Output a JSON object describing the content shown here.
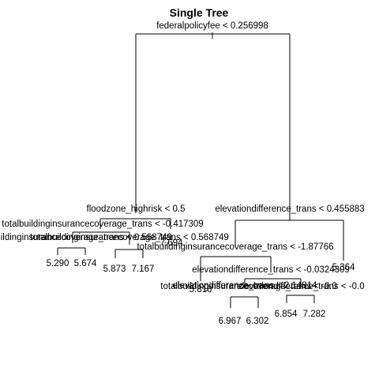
{
  "title": "Single Tree",
  "splits": {
    "root": "federalpolicyfee < 0.256998",
    "n_flood": "floodzone_highrisk < 0.5",
    "n_tbic1": "totalbuildinginsurancecoverage_trans < -0.417309",
    "n_tbic2": "totalbuildinginsurancecoverage_trans < 0.568749",
    "n_tbic2_overlap": "totalbuildinginsurancecoverage_trans < 0.568749",
    "n_elev1": "elevationdifference_trans < 0.455883",
    "n_tbic3": "totalbuildinginsurancecoverage_trans < -1.87766",
    "n_elev2": "elevationdifference_trans < -0.0324309",
    "n_elev3": "elevationdifference_trans < 2.14814",
    "n_elev4": "elevationdifference_trans < -0.0",
    "n_tbic4": "totalbuildinginsurancecoverage_trans < -0.0"
  },
  "leaves": {
    "l1": "5.290",
    "l2": "5.674",
    "l3": "5.873",
    "l4": "7.167",
    "l5": "7.694",
    "l6": "5.364",
    "l7": "5.816",
    "l8": "6.967",
    "l9": "6.302",
    "l10": "6.854",
    "l11": "7.282"
  }
}
